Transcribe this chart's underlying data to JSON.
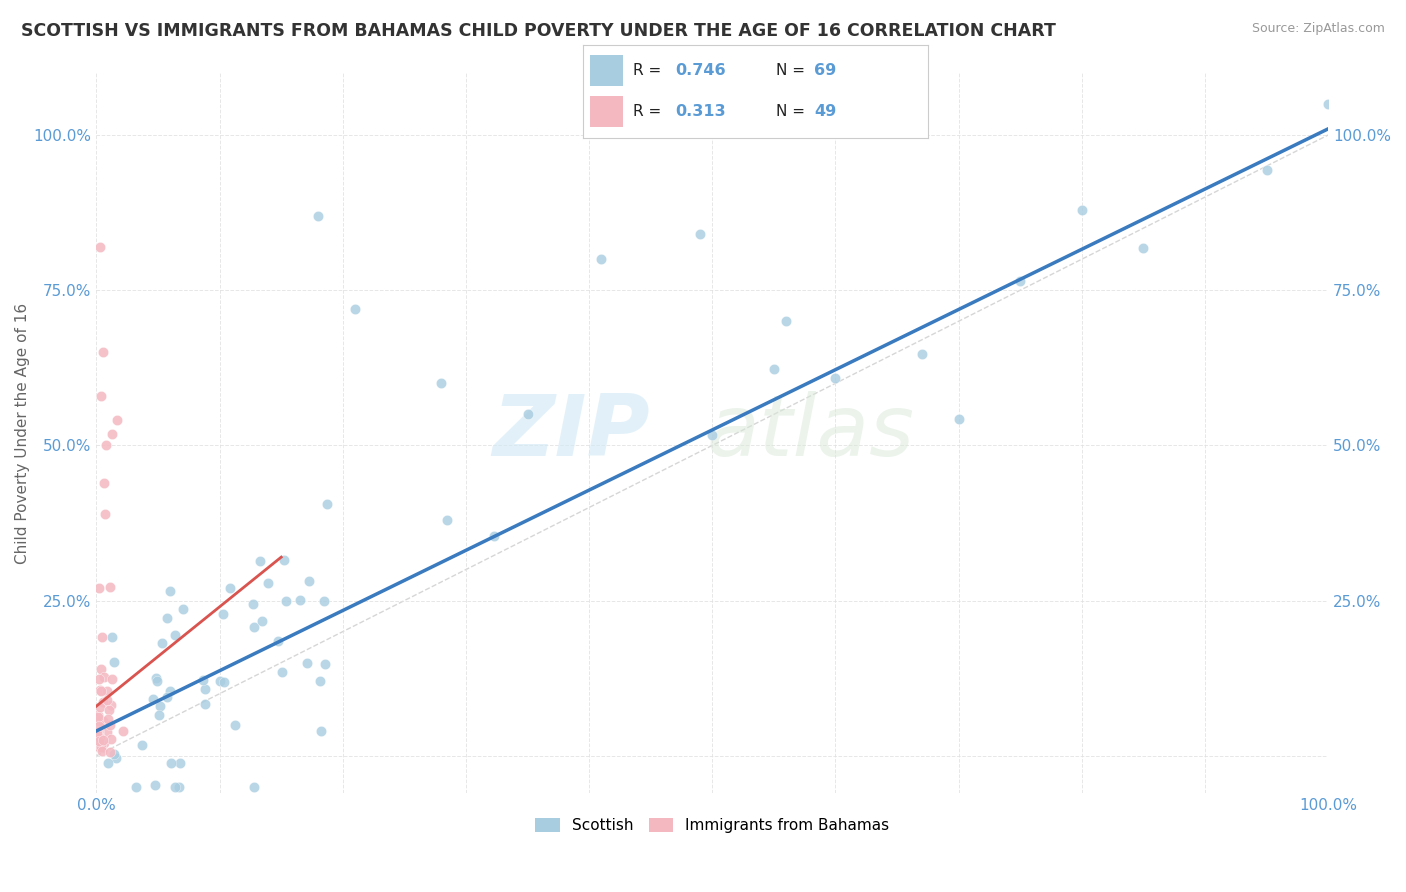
{
  "title": "SCOTTISH VS IMMIGRANTS FROM BAHAMAS CHILD POVERTY UNDER THE AGE OF 16 CORRELATION CHART",
  "source": "Source: ZipAtlas.com",
  "ylabel": "Child Poverty Under the Age of 16",
  "watermark_zip": "ZIP",
  "watermark_atlas": "atlas",
  "legend_R_blue": "0.746",
  "legend_N_blue": "69",
  "legend_R_pink": "0.313",
  "legend_N_pink": "49",
  "blue_color": "#a8cce0",
  "pink_color": "#f4b8c1",
  "blue_line_color": "#3a7abf",
  "pink_line_color": "#d9534f",
  "dashed_line_color": "#cccccc",
  "title_color": "#333333",
  "axis_label_color": "#5b9bd5",
  "blue_line_x0": 0.0,
  "blue_line_y0": 0.04,
  "blue_line_x1": 1.0,
  "blue_line_y1": 1.01,
  "pink_line_x0": 0.0,
  "pink_line_y0": 0.08,
  "pink_line_x1": 0.15,
  "pink_line_y1": 0.32,
  "xlim": [
    0.0,
    1.0
  ],
  "ylim": [
    -0.06,
    1.1
  ],
  "yticks": [
    0.0,
    0.25,
    0.5,
    0.75,
    1.0
  ],
  "ytick_labels_left": [
    "",
    "25.0%",
    "50.0%",
    "75.0%",
    "100.0%"
  ],
  "ytick_labels_right": [
    "25.0%",
    "50.0%",
    "75.0%",
    "100.0%"
  ]
}
